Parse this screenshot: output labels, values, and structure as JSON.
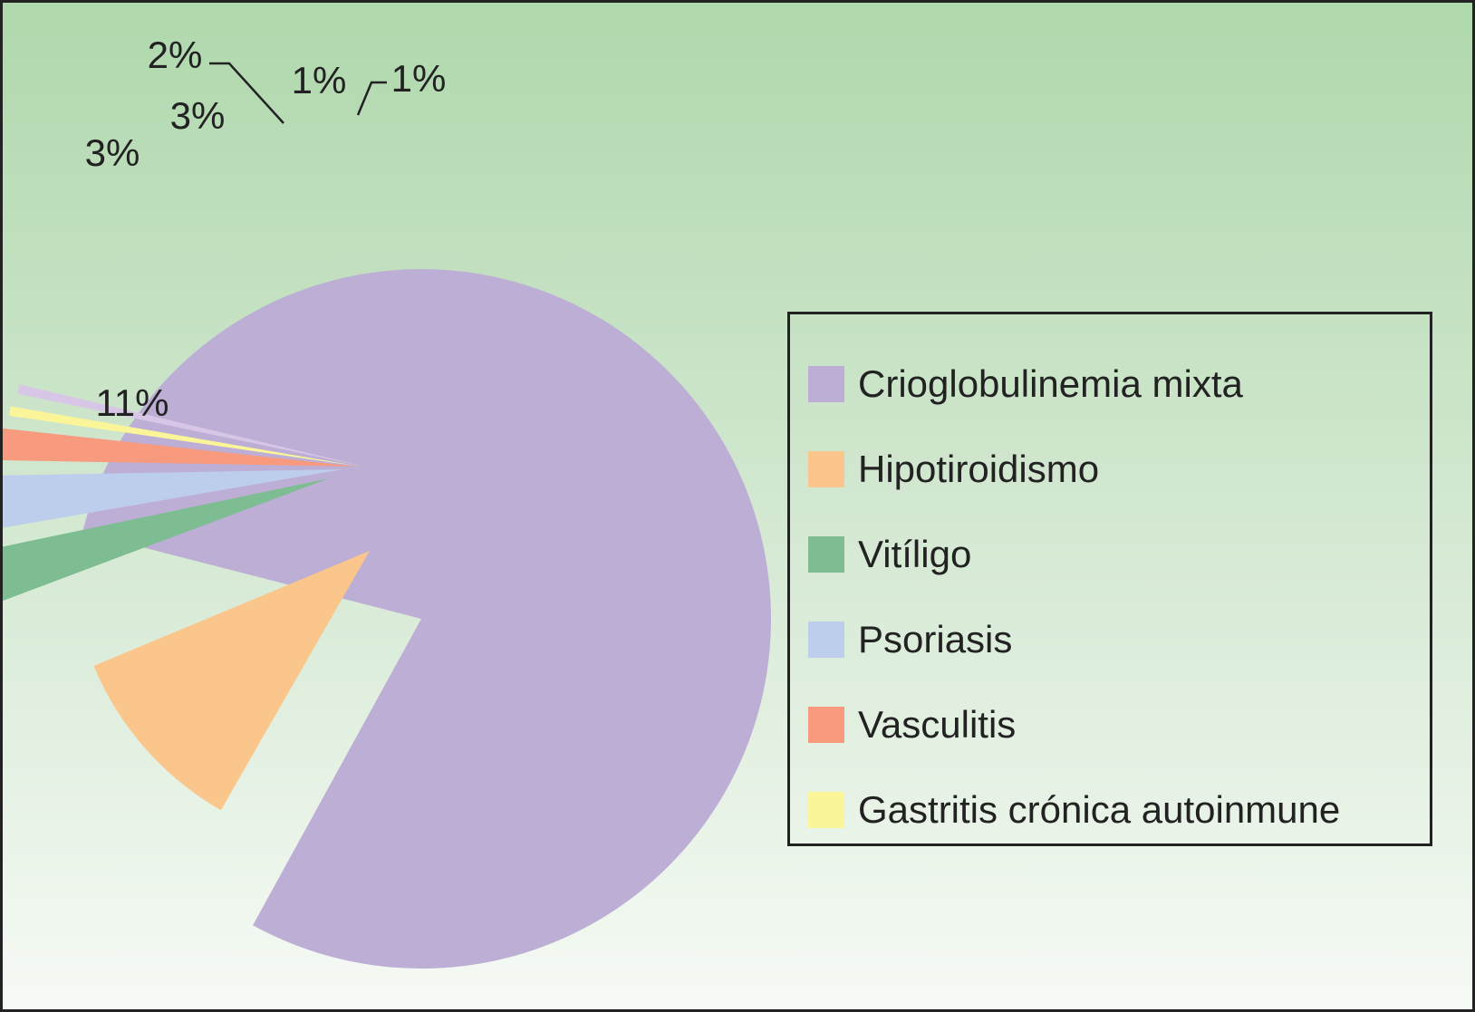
{
  "chart_data": {
    "type": "pie",
    "title": "",
    "exploded": true,
    "slices": [
      {
        "name": "Crioglobulinemia mixta",
        "value": 79,
        "label": "",
        "color": "#bdaed5"
      },
      {
        "name": "Hipotiroidismo",
        "value": 11,
        "label": "11%",
        "color": "#fbc68b"
      },
      {
        "name": "Vitíligo",
        "value": 3,
        "label": "3%",
        "color": "#7dbd91"
      },
      {
        "name": "Psoriasis",
        "value": 3,
        "label": "3%",
        "color": "#bdcdec"
      },
      {
        "name": "Vasculitis",
        "value": 2,
        "label": "2%",
        "color": "#f79a7e"
      },
      {
        "name": "Gastritis crónica autoinmune",
        "value": 1,
        "label": "1%",
        "color": "#fbf59a"
      },
      {
        "name": "",
        "value": 1,
        "label": "1%",
        "color": "#d8c6e6"
      }
    ],
    "legend": {
      "placement": "right",
      "items": [
        {
          "label": "Crioglobulinemia mixta",
          "color": "#bdaed5"
        },
        {
          "label": "Hipotiroidismo",
          "color": "#fbc68b"
        },
        {
          "label": "Vitíligo",
          "color": "#7dbd91"
        },
        {
          "label": "Psoriasis",
          "color": "#bdcdec"
        },
        {
          "label": "Vasculitis",
          "color": "#f79a7e"
        },
        {
          "label": "Gastritis crónica autoinmune",
          "color": "#fbf59a"
        }
      ]
    }
  }
}
